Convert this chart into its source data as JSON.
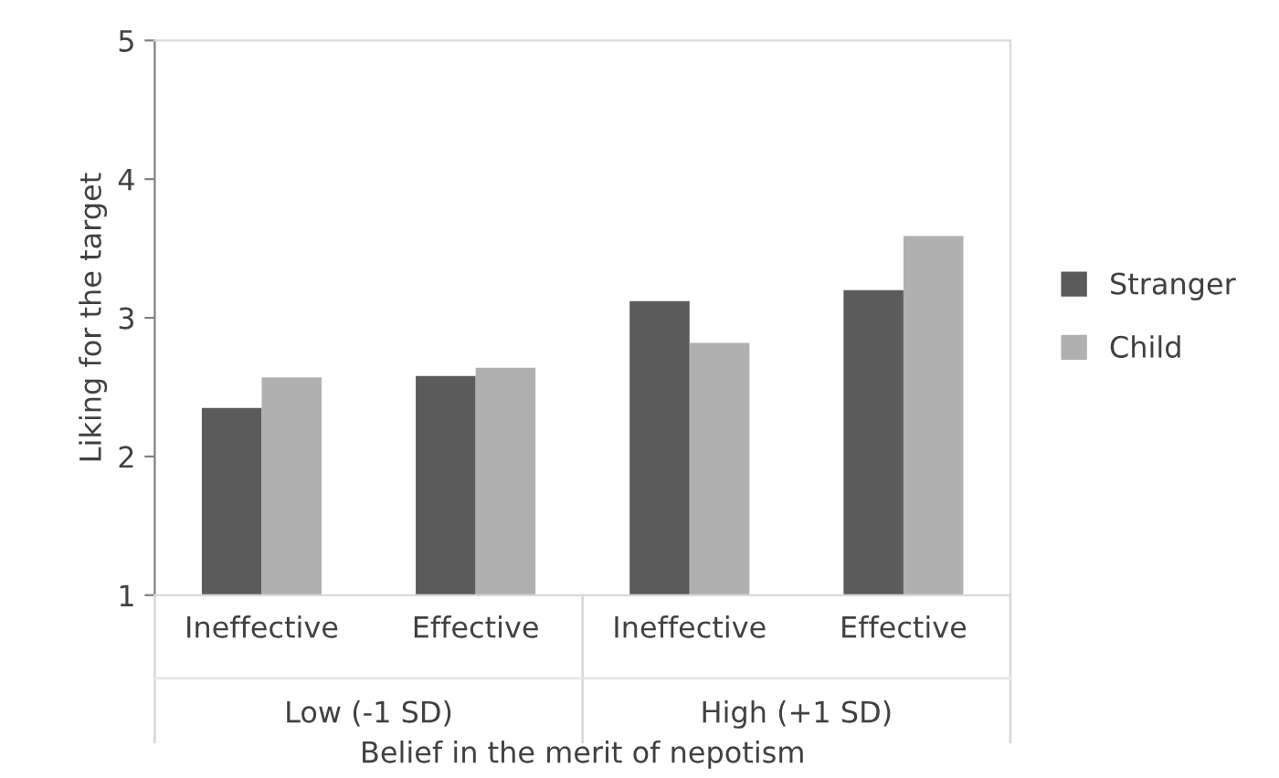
{
  "chart_data": {
    "type": "bar",
    "xlabel": "Belief in the merit of nepotism",
    "ylabel": "Liking for the target",
    "categories": [
      "Ineffective",
      "Effective",
      "Ineffective",
      "Effective"
    ],
    "series": [
      {
        "name": "Stranger",
        "color": "#5b5b5b",
        "values": [
          2.35,
          2.58,
          3.12,
          3.2
        ]
      },
      {
        "name": "Child",
        "color": "#b0b0b0",
        "values": [
          2.57,
          2.64,
          2.82,
          3.59
        ]
      }
    ],
    "annotations": [
      "Low (-1 SD)",
      "High (+1 SD)"
    ],
    "ylim": [
      1,
      5
    ],
    "yticks": [
      1,
      2,
      3,
      4,
      5
    ],
    "grid": false,
    "legend": "right"
  }
}
